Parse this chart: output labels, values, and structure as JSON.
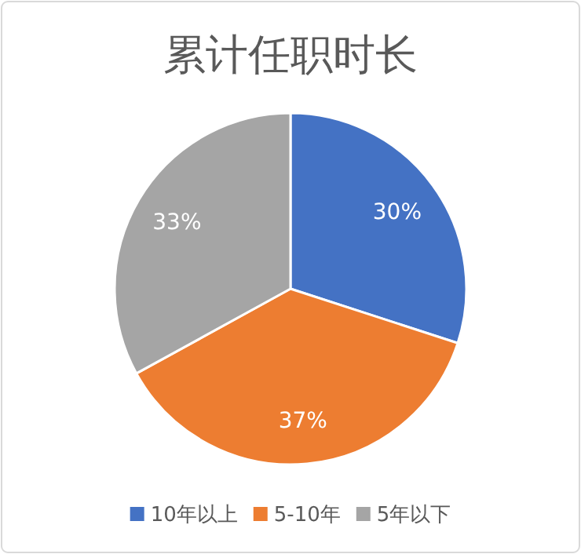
{
  "chart_data": {
    "type": "pie",
    "title": "累计任职时长",
    "categories": [
      "10年以上",
      "5-10年",
      "5年以下"
    ],
    "values": [
      30,
      37,
      33
    ],
    "colors": [
      "#4472c4",
      "#ed7d31",
      "#a5a5a5"
    ],
    "value_labels": [
      "30%",
      "37%",
      "33%"
    ],
    "legend": "bottom"
  }
}
